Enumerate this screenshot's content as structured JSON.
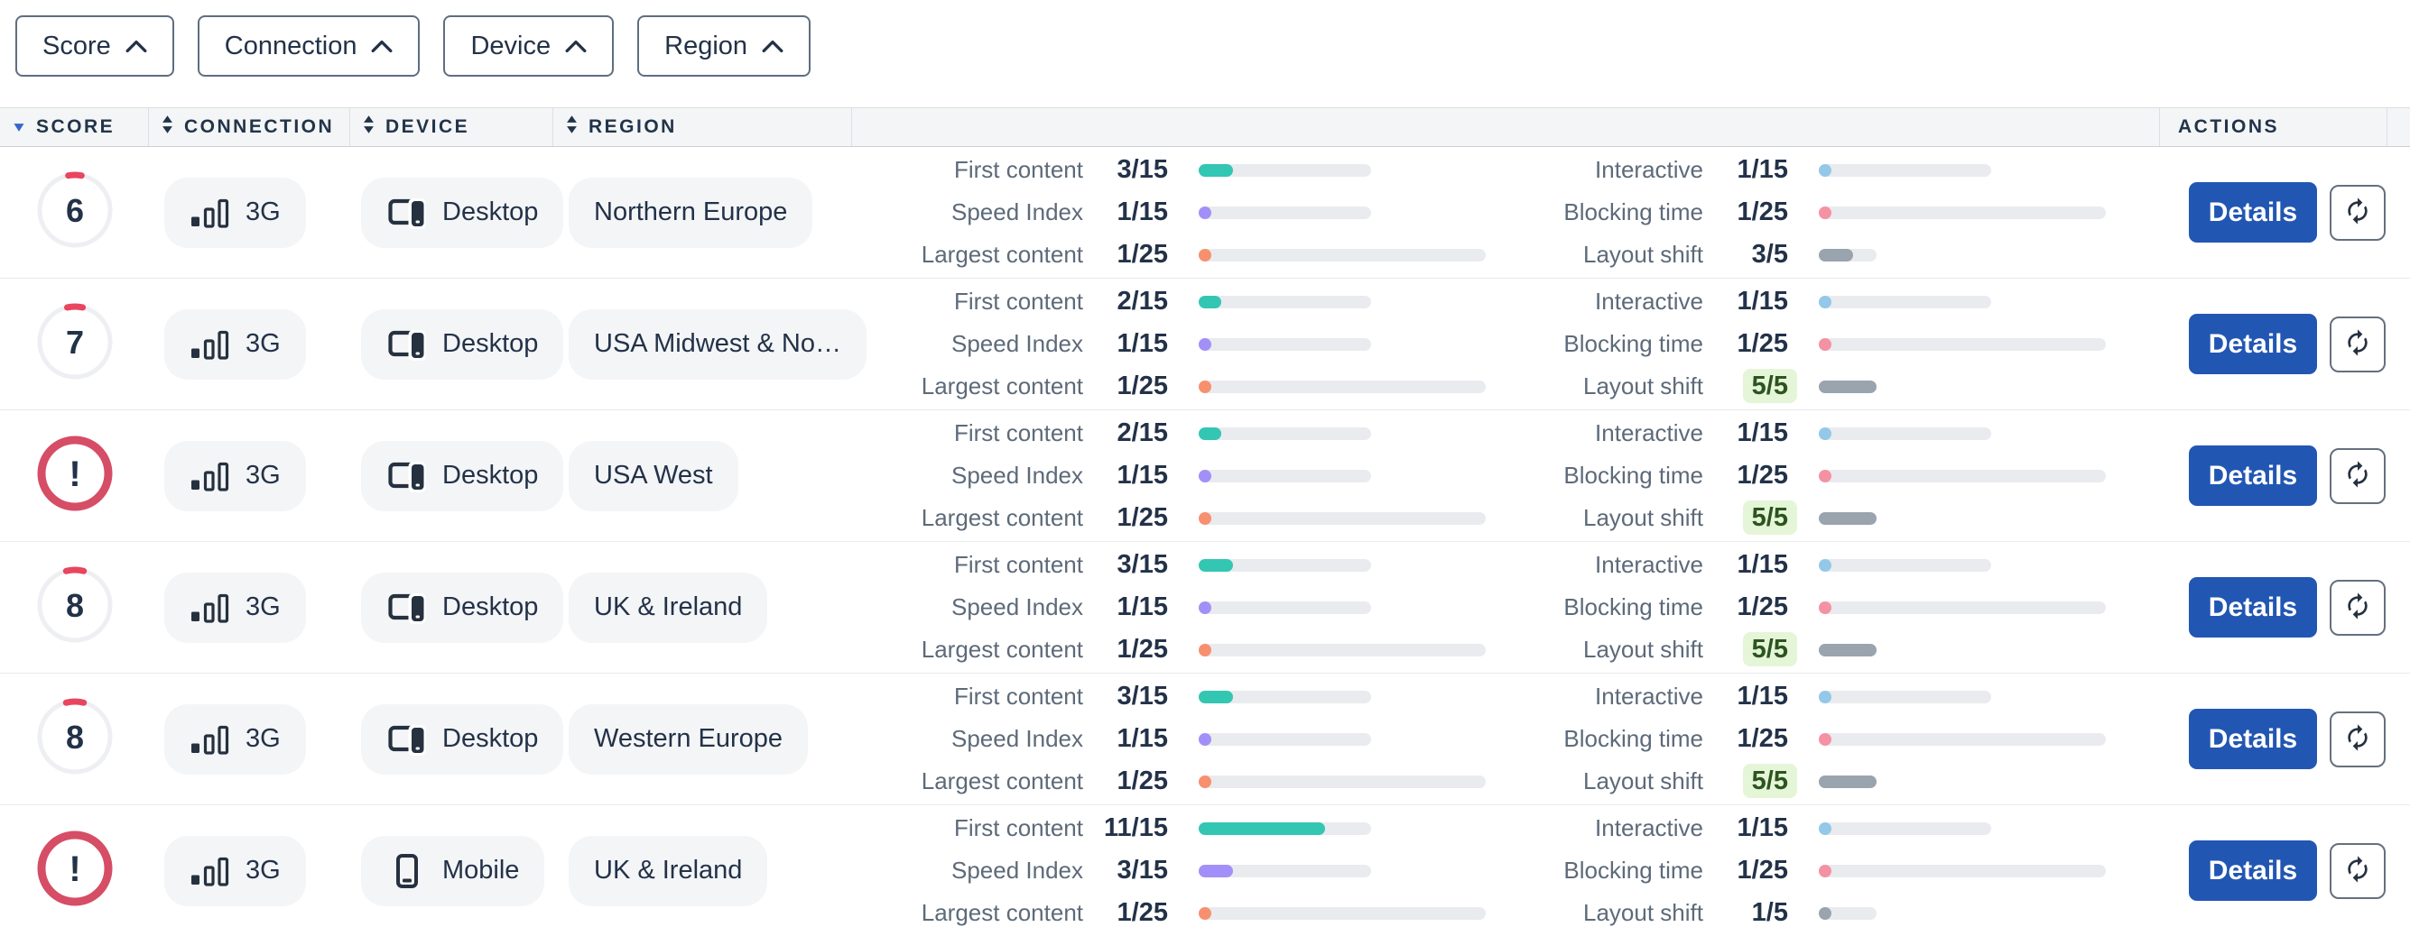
{
  "filters": [
    {
      "label": "Score"
    },
    {
      "label": "Connection"
    },
    {
      "label": "Device"
    },
    {
      "label": "Region"
    }
  ],
  "table": {
    "columns": [
      {
        "key": "score",
        "label": "SCORE",
        "sort": "desc"
      },
      {
        "key": "connection",
        "label": "CONNECTION",
        "sort": "both"
      },
      {
        "key": "device",
        "label": "DEVICE",
        "sort": "both"
      },
      {
        "key": "region",
        "label": "REGION",
        "sort": "both"
      },
      {
        "key": "actions",
        "label": "ACTIONS",
        "sort": "none"
      }
    ],
    "rows": [
      {
        "score": "6",
        "connection": "3G",
        "device": "Desktop",
        "device_icon": "desktop",
        "region": "Northern Europe",
        "metrics": [
          {
            "label": "First content",
            "value": "3/15",
            "key": "first_content",
            "highlight": false
          },
          {
            "label": "Speed Index",
            "value": "1/15",
            "key": "speed_index",
            "highlight": false
          },
          {
            "label": "Largest content",
            "value": "1/25",
            "key": "largest_content",
            "highlight": false
          },
          {
            "label": "Interactive",
            "value": "1/15",
            "key": "interactive",
            "highlight": false
          },
          {
            "label": "Blocking time",
            "value": "1/25",
            "key": "blocking_time",
            "highlight": false
          },
          {
            "label": "Layout shift",
            "value": "3/5",
            "key": "layout_shift",
            "highlight": false
          }
        ]
      },
      {
        "score": "7",
        "connection": "3G",
        "device": "Desktop",
        "device_icon": "desktop",
        "region": "USA Midwest & No…",
        "metrics": [
          {
            "label": "First content",
            "value": "2/15",
            "key": "first_content",
            "highlight": false
          },
          {
            "label": "Speed Index",
            "value": "1/15",
            "key": "speed_index",
            "highlight": false
          },
          {
            "label": "Largest content",
            "value": "1/25",
            "key": "largest_content",
            "highlight": false
          },
          {
            "label": "Interactive",
            "value": "1/15",
            "key": "interactive",
            "highlight": false
          },
          {
            "label": "Blocking time",
            "value": "1/25",
            "key": "blocking_time",
            "highlight": false
          },
          {
            "label": "Layout shift",
            "value": "5/5",
            "key": "layout_shift",
            "highlight": true
          }
        ]
      },
      {
        "score": "!",
        "connection": "3G",
        "device": "Desktop",
        "device_icon": "desktop",
        "region": "USA West",
        "metrics": [
          {
            "label": "First content",
            "value": "2/15",
            "key": "first_content",
            "highlight": false
          },
          {
            "label": "Speed Index",
            "value": "1/15",
            "key": "speed_index",
            "highlight": false
          },
          {
            "label": "Largest content",
            "value": "1/25",
            "key": "largest_content",
            "highlight": false
          },
          {
            "label": "Interactive",
            "value": "1/15",
            "key": "interactive",
            "highlight": false
          },
          {
            "label": "Blocking time",
            "value": "1/25",
            "key": "blocking_time",
            "highlight": false
          },
          {
            "label": "Layout shift",
            "value": "5/5",
            "key": "layout_shift",
            "highlight": true
          }
        ]
      },
      {
        "score": "8",
        "connection": "3G",
        "device": "Desktop",
        "device_icon": "desktop",
        "region": "UK & Ireland",
        "metrics": [
          {
            "label": "First content",
            "value": "3/15",
            "key": "first_content",
            "highlight": false
          },
          {
            "label": "Speed Index",
            "value": "1/15",
            "key": "speed_index",
            "highlight": false
          },
          {
            "label": "Largest content",
            "value": "1/25",
            "key": "largest_content",
            "highlight": false
          },
          {
            "label": "Interactive",
            "value": "1/15",
            "key": "interactive",
            "highlight": false
          },
          {
            "label": "Blocking time",
            "value": "1/25",
            "key": "blocking_time",
            "highlight": false
          },
          {
            "label": "Layout shift",
            "value": "5/5",
            "key": "layout_shift",
            "highlight": true
          }
        ]
      },
      {
        "score": "8",
        "connection": "3G",
        "device": "Desktop",
        "device_icon": "desktop",
        "region": "Western Europe",
        "metrics": [
          {
            "label": "First content",
            "value": "3/15",
            "key": "first_content",
            "highlight": false
          },
          {
            "label": "Speed Index",
            "value": "1/15",
            "key": "speed_index",
            "highlight": false
          },
          {
            "label": "Largest content",
            "value": "1/25",
            "key": "largest_content",
            "highlight": false
          },
          {
            "label": "Interactive",
            "value": "1/15",
            "key": "interactive",
            "highlight": false
          },
          {
            "label": "Blocking time",
            "value": "1/25",
            "key": "blocking_time",
            "highlight": false
          },
          {
            "label": "Layout shift",
            "value": "5/5",
            "key": "layout_shift",
            "highlight": true
          }
        ]
      },
      {
        "score": "!",
        "connection": "3G",
        "device": "Mobile",
        "device_icon": "mobile",
        "region": "UK & Ireland",
        "metrics": [
          {
            "label": "First content",
            "value": "11/15",
            "key": "first_content",
            "highlight": false
          },
          {
            "label": "Speed Index",
            "value": "3/15",
            "key": "speed_index",
            "highlight": false
          },
          {
            "label": "Largest content",
            "value": "1/25",
            "key": "largest_content",
            "highlight": false
          },
          {
            "label": "Interactive",
            "value": "1/15",
            "key": "interactive",
            "highlight": false
          },
          {
            "label": "Blocking time",
            "value": "1/25",
            "key": "blocking_time",
            "highlight": false
          },
          {
            "label": "Layout shift",
            "value": "1/5",
            "key": "layout_shift",
            "highlight": false
          }
        ]
      }
    ]
  },
  "actions": {
    "details_label": "Details",
    "refresh_icon": "refresh-icon"
  },
  "colors": {
    "first_content": "#33c6b3",
    "speed_index": "#a290f8",
    "largest_content": "#f7906e",
    "interactive": "#93c8e9",
    "blocking_time": "#f492a3",
    "layout_shift": "#9aa4ae",
    "score_arc": "#e8455f",
    "error_ring": "#d64d66",
    "details_blue": "#2256b3",
    "sort_blue": "#3566cc",
    "highlight_green": "#e4f6d7"
  }
}
